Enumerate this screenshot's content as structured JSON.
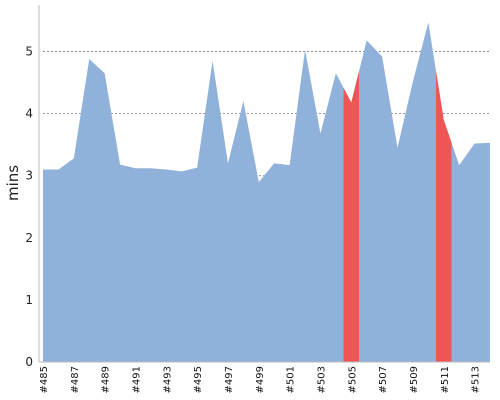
{
  "chart_data": {
    "type": "area",
    "ylabel": "mins",
    "ylim": [
      0,
      5.75
    ],
    "yticks": [
      0,
      1,
      2,
      3,
      4,
      5
    ],
    "grid": "horizontal-dotted",
    "colors": {
      "normal": "#8fb1da",
      "failed": "#f05555",
      "grid": "#777777",
      "axis": "#bbbbbb"
    },
    "xtick_labels": [
      "#485",
      "#487",
      "#489",
      "#491",
      "#493",
      "#495",
      "#497",
      "#499",
      "#501",
      "#503",
      "#505",
      "#507",
      "#509",
      "#511",
      "#513"
    ],
    "builds": [
      "#485",
      "#486",
      "#487",
      "#488",
      "#489",
      "#490",
      "#491",
      "#492",
      "#493",
      "#494",
      "#495",
      "#496",
      "#497",
      "#498",
      "#499",
      "#500",
      "#501",
      "#502",
      "#503",
      "#504",
      "#505",
      "#506",
      "#507",
      "#508",
      "#509",
      "#510",
      "#511",
      "#512",
      "#513",
      "#514"
    ],
    "values": [
      3.1,
      3.1,
      3.28,
      4.88,
      4.65,
      3.18,
      3.12,
      3.12,
      3.1,
      3.07,
      3.13,
      4.85,
      3.2,
      4.2,
      2.9,
      3.2,
      3.17,
      5.03,
      3.68,
      4.65,
      4.18,
      5.18,
      4.92,
      3.45,
      4.52,
      5.47,
      3.9,
      3.17,
      3.52,
      3.53
    ],
    "status": [
      "ok",
      "ok",
      "ok",
      "ok",
      "ok",
      "ok",
      "ok",
      "ok",
      "ok",
      "ok",
      "ok",
      "ok",
      "ok",
      "ok",
      "ok",
      "ok",
      "ok",
      "ok",
      "ok",
      "ok",
      "failed",
      "ok",
      "ok",
      "ok",
      "ok",
      "ok",
      "failed",
      "ok",
      "ok",
      "ok"
    ]
  }
}
